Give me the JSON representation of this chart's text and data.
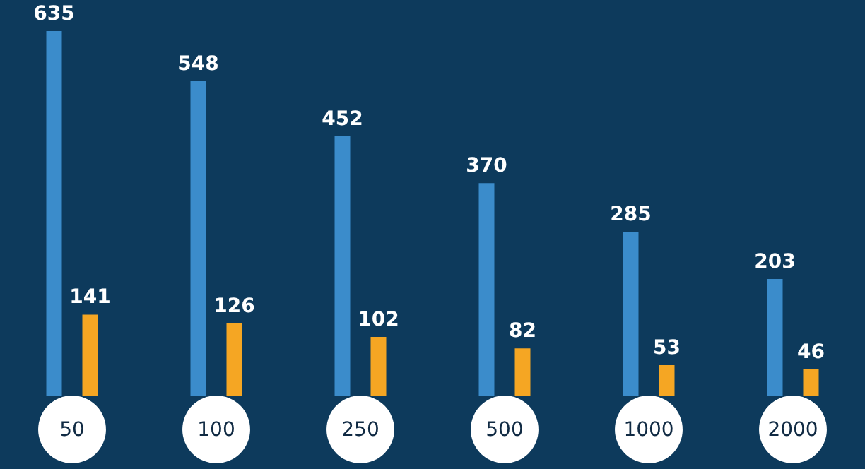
{
  "chart_data": {
    "type": "bar",
    "categories": [
      "50",
      "100",
      "250",
      "500",
      "1000",
      "2000"
    ],
    "series": [
      {
        "color": "#3b8ccb",
        "values": [
          635,
          548,
          452,
          370,
          285,
          203
        ]
      },
      {
        "color": "#f5a623",
        "values": [
          141,
          126,
          102,
          82,
          53,
          46
        ]
      }
    ],
    "data_labels": true
  }
}
